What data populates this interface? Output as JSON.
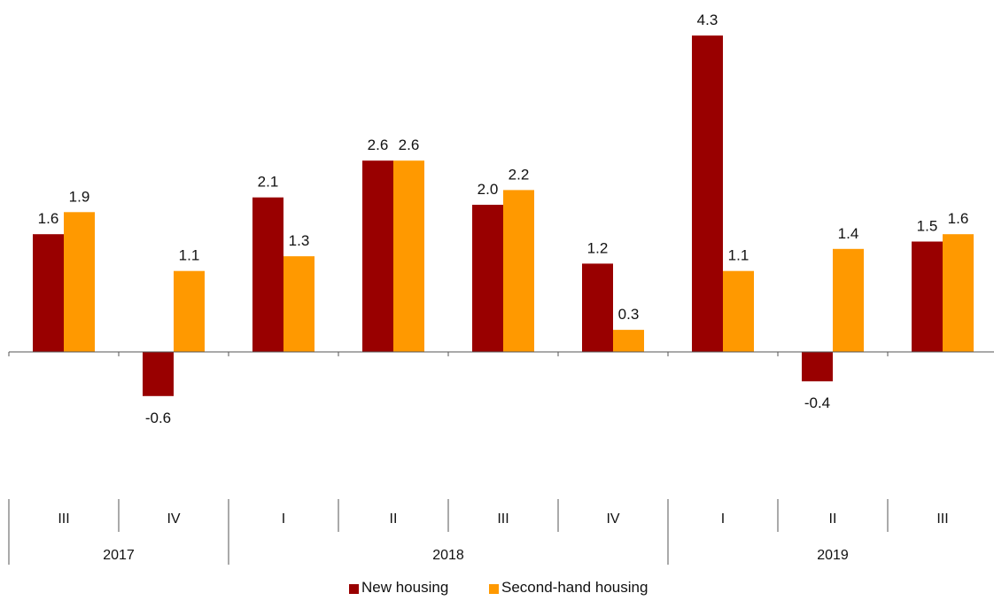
{
  "chart_data": {
    "type": "bar",
    "categories": [
      "III",
      "IV",
      "I",
      "II",
      "III",
      "IV",
      "I",
      "II",
      "III"
    ],
    "groups": [
      {
        "label": "2017",
        "span": 2
      },
      {
        "label": "2018",
        "span": 4
      },
      {
        "label": "2019",
        "span": 3
      }
    ],
    "series": [
      {
        "name": "New housing",
        "color": "#990000",
        "values": [
          1.6,
          -0.6,
          2.1,
          2.6,
          2.0,
          1.2,
          4.3,
          -0.4,
          1.5
        ],
        "labels": [
          "1.6",
          "-0.6",
          "2.1",
          "2.6",
          "2.0",
          "1.2",
          "4.3",
          "-0.4",
          "1.5"
        ]
      },
      {
        "name": "Second-hand housing",
        "color": "#ff9900",
        "values": [
          1.9,
          1.1,
          1.3,
          2.6,
          2.2,
          0.3,
          1.1,
          1.4,
          1.6
        ],
        "labels": [
          "1.9",
          "1.1",
          "1.3",
          "2.6",
          "2.2",
          "0.3",
          "1.1",
          "1.4",
          "1.6"
        ]
      }
    ],
    "ylim": [
      -1.8,
      4.8
    ],
    "grid": false,
    "legend_position": "bottom-center",
    "title": "",
    "xlabel": "",
    "ylabel": ""
  }
}
